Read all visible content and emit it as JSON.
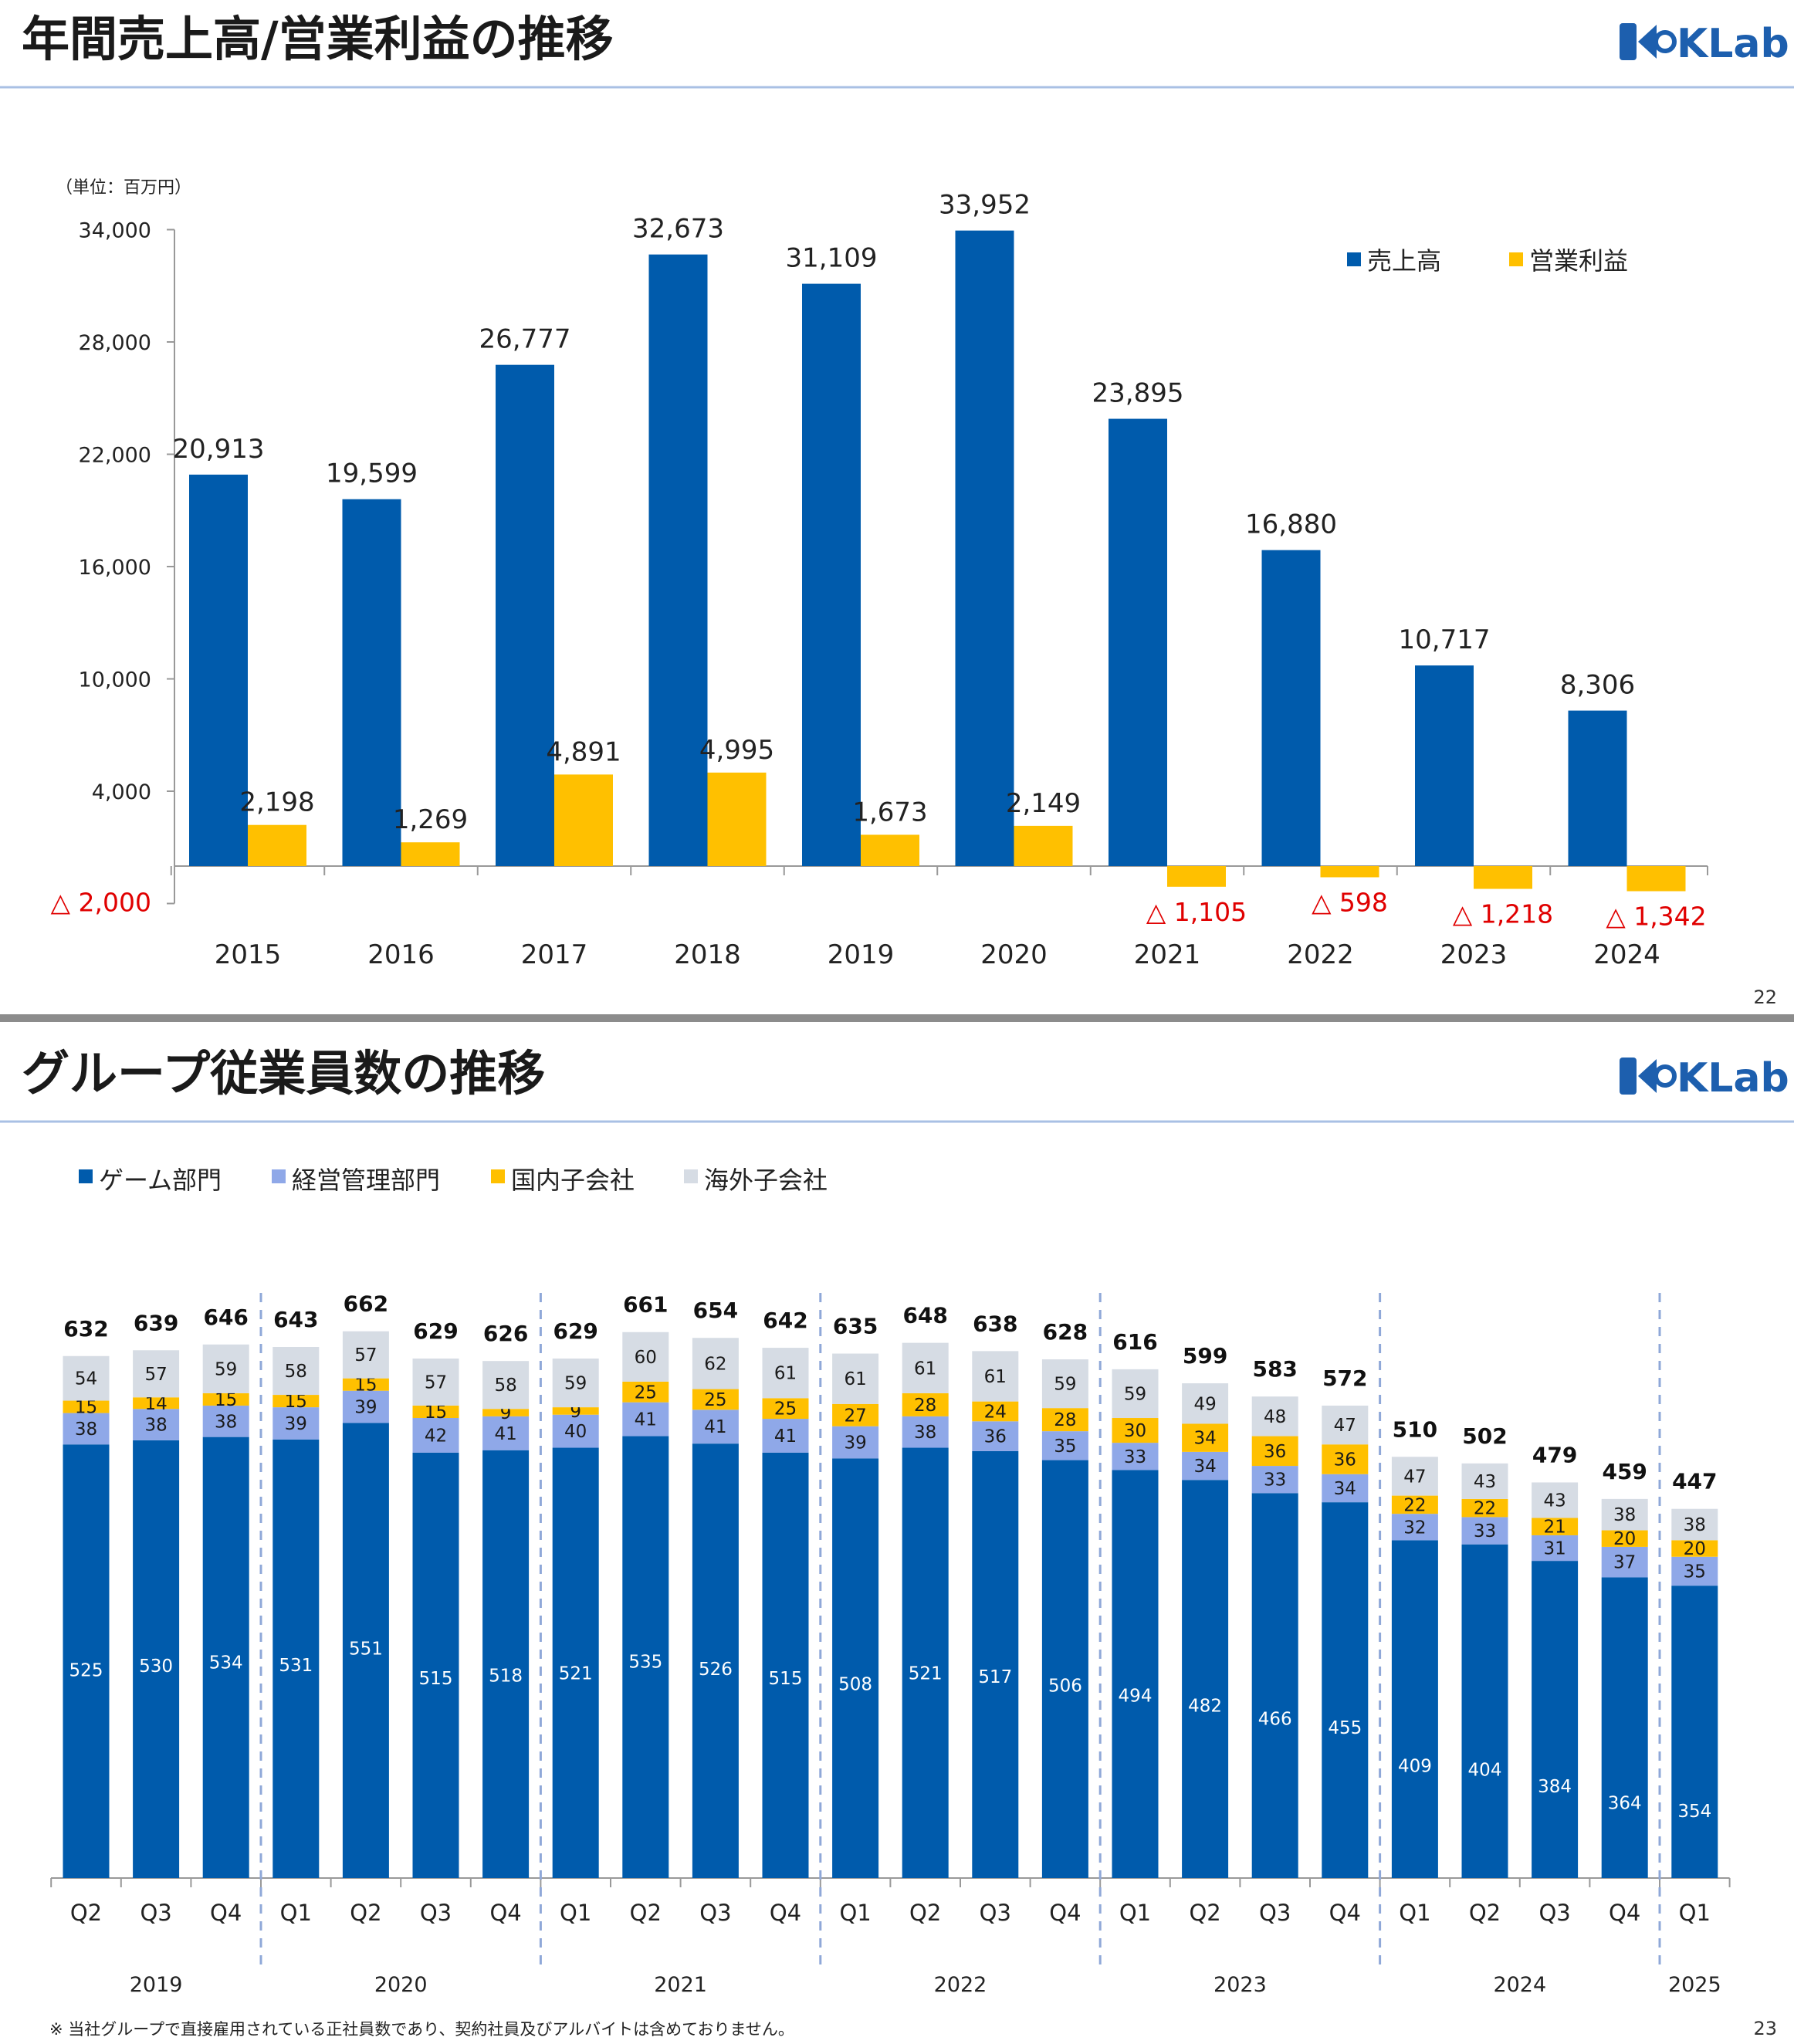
{
  "slide1": {
    "title": "年間売上高/営業利益の推移",
    "logo": "KLab",
    "page_number": "22"
  },
  "slide2": {
    "title": "グループ従業員数の推移",
    "logo": "KLab",
    "page_number": "23",
    "footnote": "※ 当社グループで直接雇用されている正社員数であり、契約社員及びアルバイトは含めておりません。"
  },
  "chart_data": [
    {
      "type": "bar",
      "unit_label": "（単位：百万円）",
      "categories": [
        "2015",
        "2016",
        "2017",
        "2018",
        "2019",
        "2020",
        "2021",
        "2022",
        "2023",
        "2024"
      ],
      "series": [
        {
          "name": "売上高",
          "color": "#005bac",
          "values": [
            20913,
            19599,
            26777,
            32673,
            31109,
            33952,
            23895,
            16880,
            10717,
            8306
          ],
          "labels": [
            "20,913",
            "19,599",
            "26,777",
            "32,673",
            "31,109",
            "33,952",
            "23,895",
            "16,880",
            "10,717",
            "8,306"
          ]
        },
        {
          "name": "営業利益",
          "color": "#ffc000",
          "values": [
            2198,
            1269,
            4891,
            4995,
            1673,
            2149,
            -1105,
            -598,
            -1218,
            -1342
          ],
          "labels": [
            "2,198",
            "1,269",
            "4,891",
            "4,995",
            "1,673",
            "2,149",
            "△ 1,105",
            "△ 598",
            "△ 1,218",
            "△ 1,342"
          ]
        }
      ],
      "y_ticks": [
        -2000,
        4000,
        10000,
        16000,
        22000,
        28000,
        34000
      ],
      "y_tick_labels": [
        "△ 2,000",
        "4,000",
        "10,000",
        "16,000",
        "22,000",
        "28,000",
        "34,000"
      ],
      "ylim": [
        -2000,
        34000
      ],
      "negative_label_color": "#ff0000",
      "legend_position": "top-right",
      "grid": false
    },
    {
      "type": "bar",
      "stacked": true,
      "categories": [
        "Q2",
        "Q3",
        "Q4",
        "Q1",
        "Q2",
        "Q3",
        "Q4",
        "Q1",
        "Q2",
        "Q3",
        "Q4",
        "Q1",
        "Q2",
        "Q3",
        "Q4",
        "Q1",
        "Q2",
        "Q3",
        "Q4",
        "Q1",
        "Q2",
        "Q3",
        "Q4",
        "Q1"
      ],
      "year_groups": [
        {
          "label": "2019",
          "count": 3
        },
        {
          "label": "2020",
          "count": 4
        },
        {
          "label": "2021",
          "count": 4
        },
        {
          "label": "2022",
          "count": 4
        },
        {
          "label": "2023",
          "count": 4
        },
        {
          "label": "2024",
          "count": 4
        },
        {
          "label": "2025",
          "count": 1
        }
      ],
      "series": [
        {
          "name": "ゲーム部門",
          "color": "#005bac",
          "text_color": "#ffffff",
          "values": [
            525,
            530,
            534,
            531,
            551,
            515,
            518,
            521,
            535,
            526,
            515,
            508,
            521,
            517,
            506,
            494,
            482,
            466,
            455,
            409,
            404,
            384,
            364,
            354
          ]
        },
        {
          "name": "経営管理部門",
          "color": "#8fa8e8",
          "text_color": "#1a1a1a",
          "values": [
            38,
            38,
            38,
            39,
            39,
            42,
            41,
            40,
            41,
            41,
            41,
            39,
            38,
            36,
            35,
            33,
            34,
            33,
            34,
            32,
            33,
            31,
            37,
            35
          ]
        },
        {
          "name": "国内子会社",
          "color": "#ffc000",
          "text_color": "#1a1a1a",
          "values": [
            15,
            14,
            15,
            15,
            15,
            15,
            9,
            9,
            25,
            25,
            25,
            27,
            28,
            24,
            28,
            30,
            34,
            36,
            36,
            22,
            22,
            21,
            20,
            20
          ]
        },
        {
          "name": "海外子会社",
          "color": "#d6dce4",
          "text_color": "#1a1a1a",
          "values": [
            54,
            57,
            59,
            58,
            57,
            57,
            58,
            59,
            60,
            62,
            61,
            61,
            61,
            61,
            59,
            59,
            49,
            48,
            47,
            47,
            43,
            43,
            38,
            38
          ]
        }
      ],
      "totals": [
        632,
        639,
        646,
        643,
        662,
        629,
        626,
        629,
        661,
        654,
        642,
        635,
        648,
        638,
        628,
        616,
        599,
        583,
        572,
        510,
        502,
        479,
        459,
        447
      ],
      "legend_position": "top-left",
      "grid": false
    }
  ]
}
